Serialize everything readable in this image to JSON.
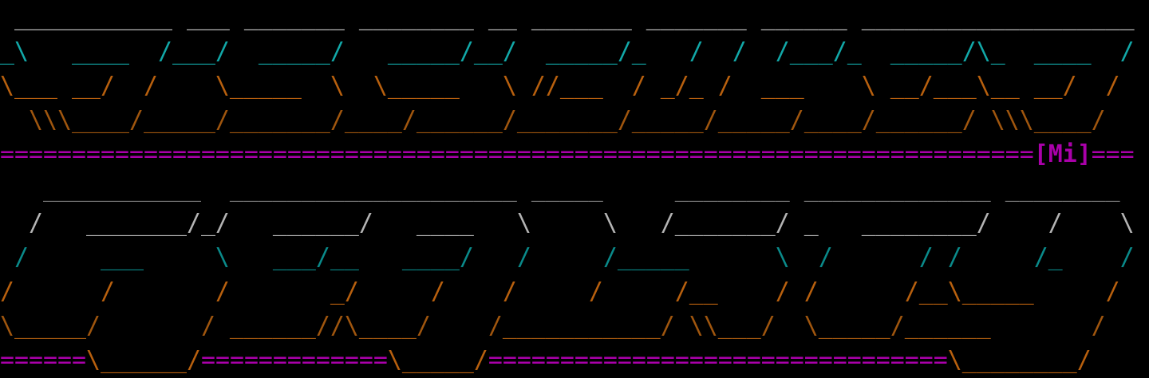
{
  "colors": {
    "gray_light": "#c8c8c8",
    "gray_dark": "#808080",
    "gray_mid": "#b4b4b4",
    "cyan": "#12a8a8",
    "cyan_dark": "#0a8a8a",
    "orange": "#b8600e",
    "orange_dark": "#a0560e",
    "magenta": "#aa00aa"
  },
  "terminal": {
    "rows": [
      {
        "segments": [
          {
            "t": " ___________ ___ _______ ________ __ _______ _______ ______ ___________________",
            "c": "gray_light"
          }
        ]
      },
      {
        "segments": [
          {
            "t": "_\\   ____  /___/  _____/   _____/__/  _____/_   /  /  /___/_  _____/\\_  ____  /",
            "c": "cyan"
          }
        ]
      },
      {
        "segments": [
          {
            "t": "\\___ __/  /    \\_____  \\  \\_____   \\ //___  / _/_ /  ___    \\ __/___\\__ __/  /",
            "c": "orange"
          }
        ]
      },
      {
        "segments": [
          {
            "t": "  \\\\\\____/_____/_______/____/______/_______/_____/_____/____/______/ \\\\\\____/",
            "c": "orange_dark"
          }
        ]
      },
      {
        "segments": [
          {
            "t": "========================================================================",
            "c": "magenta"
          },
          {
            "t": "[Mi]",
            "c": "magenta",
            "bold": true
          },
          {
            "t": "===",
            "c": "magenta"
          }
        ]
      },
      {
        "segments": [
          {
            "t": "   ___________  ____________________ _____     ________ _____________ ________",
            "c": "gray_dark"
          }
        ]
      },
      {
        "segments": [
          {
            "t": "  /   _______/_/   ______/   ____   \\     \\   /_______/ _   ________/    /    \\",
            "c": "gray_mid"
          }
        ]
      },
      {
        "segments": [
          {
            "t": " /     ___     \\   ___/__   ____/   /     /_____      \\  /      / /     /_    /",
            "c": "cyan_dark"
          }
        ]
      },
      {
        "segments": [
          {
            "t": "/      /       /       _/     /    /     /     /__    / /      /__\\_____     /",
            "c": "orange"
          }
        ]
      },
      {
        "segments": [
          {
            "t": "\\_____/       / ______//\\____/    /___________/ \\\\___/  \\_____/______       /",
            "c": "orange_dark"
          }
        ]
      },
      {
        "segments": [
          {
            "t": "======",
            "c": "magenta"
          },
          {
            "t": "\\______/",
            "c": "orange"
          },
          {
            "t": "=============",
            "c": "magenta"
          },
          {
            "t": "\\_____/",
            "c": "orange"
          },
          {
            "t": "================================",
            "c": "magenta"
          },
          {
            "t": "\\________/",
            "c": "orange"
          }
        ]
      }
    ]
  }
}
